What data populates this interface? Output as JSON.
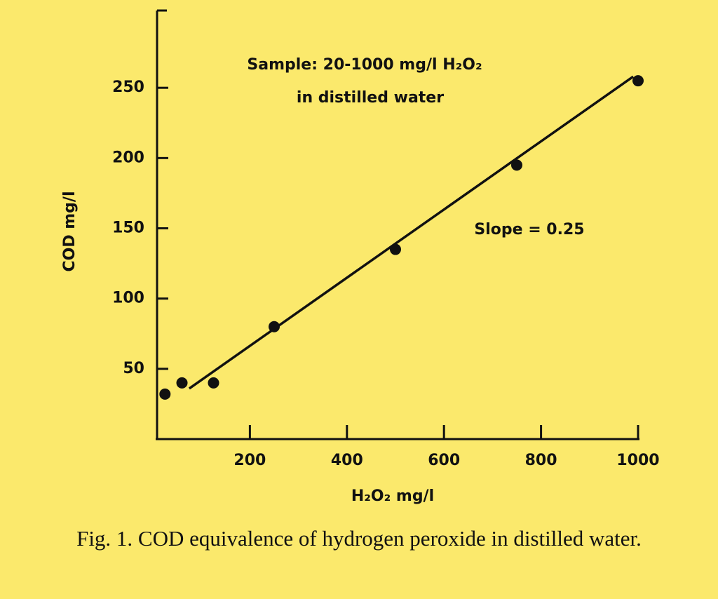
{
  "chart_data": {
    "type": "scatter",
    "annotations": [
      "Sample: 20-1000 mg/l H₂O₂",
      "in distilled water",
      "Slope = 0.25"
    ],
    "xlabel": "H₂O₂ mg/l",
    "ylabel": "COD mg/l",
    "x": [
      25,
      60,
      125,
      250,
      500,
      750,
      1000
    ],
    "values": [
      32,
      40,
      40,
      80,
      135,
      195,
      255
    ],
    "color": "#111111",
    "fit_line": {
      "x": [
        75,
        990
      ],
      "y": [
        36,
        258
      ]
    },
    "xlim": [
      0,
      1000
    ],
    "ylim": [
      0,
      305
    ],
    "xticks": [
      200,
      400,
      600,
      800,
      1000
    ],
    "yticks": [
      50,
      100,
      150,
      200,
      250
    ],
    "grid": false,
    "caption": "Fig. 1. COD equivalence of hydrogen peroxide in distilled water."
  }
}
